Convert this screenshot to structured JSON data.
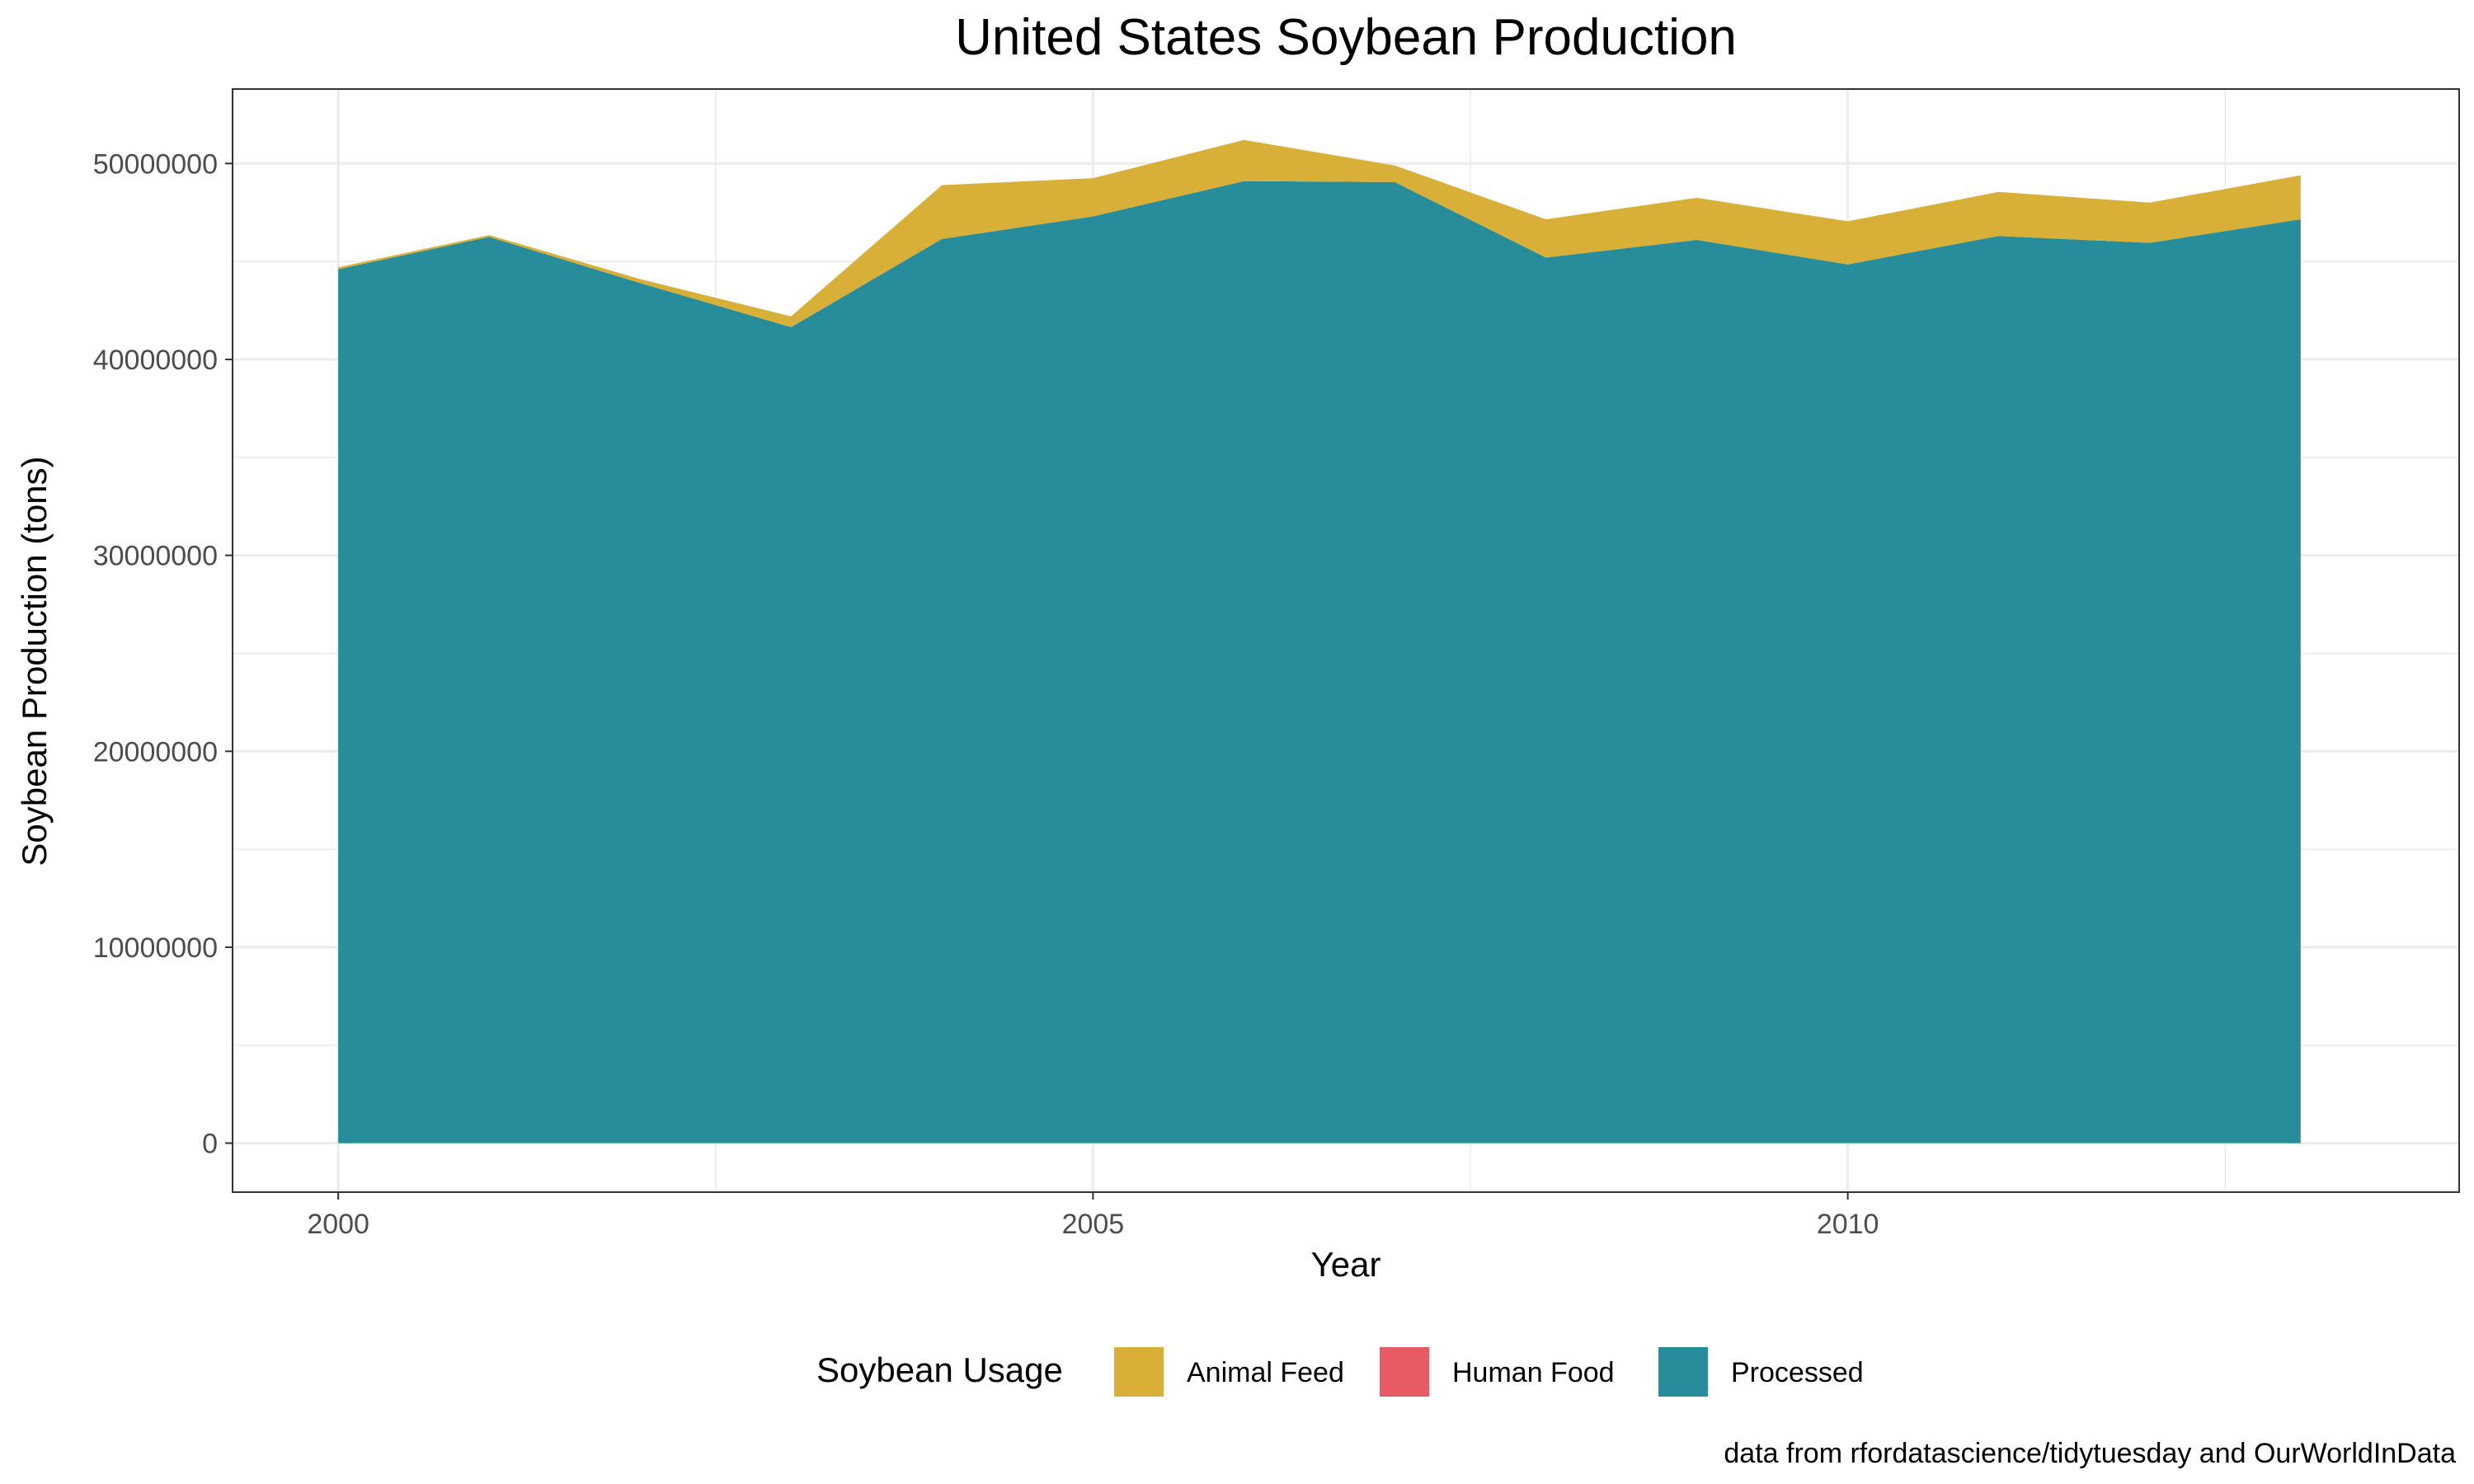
{
  "chart_data": {
    "type": "area",
    "stacked": true,
    "title": "United States Soybean Production",
    "xlabel": "Year",
    "ylabel": "Soybean Production (tons)",
    "caption": "data from rfordatascience/tidytuesday and OurWorldInData",
    "x": [
      2000,
      2001,
      2002,
      2003,
      2004,
      2005,
      2006,
      2007,
      2008,
      2009,
      2010,
      2011,
      2012,
      2013
    ],
    "xlim": [
      1999.3,
      2014.05
    ],
    "ylim": [
      -2500000,
      53800000
    ],
    "x_ticks": [
      2000,
      2005,
      2010
    ],
    "x_tick_labels": [
      "2000",
      "2005",
      "2010"
    ],
    "x_minor_ticks": [
      2002.5,
      2007.5,
      2012.5
    ],
    "y_ticks": [
      0,
      10000000,
      20000000,
      30000000,
      40000000,
      50000000
    ],
    "y_tick_labels": [
      "0",
      "10000000",
      "20000000",
      "30000000",
      "40000000",
      "50000000"
    ],
    "y_minor_ticks": [
      5000000,
      15000000,
      25000000,
      35000000,
      45000000
    ],
    "grid": true,
    "legend": {
      "title": "Soybean Usage",
      "position": "bottom"
    },
    "series": [
      {
        "name": "Processed",
        "color": "#278D9A",
        "values": [
          44600000,
          46250000,
          43900000,
          41650000,
          46150000,
          47300000,
          49100000,
          49050000,
          45200000,
          46100000,
          44850000,
          46300000,
          45950000,
          47150000
        ]
      },
      {
        "name": "Human Food",
        "color": "#E85B65",
        "values": [
          0,
          0,
          0,
          0,
          0,
          0,
          0,
          0,
          0,
          0,
          0,
          0,
          0,
          0
        ]
      },
      {
        "name": "Animal Feed",
        "color": "#D8B038",
        "values": [
          100000,
          100000,
          200000,
          550000,
          2750000,
          1950000,
          2100000,
          850000,
          1950000,
          2150000,
          2200000,
          2250000,
          2050000,
          2250000
        ]
      }
    ],
    "legend_order": [
      "Animal Feed",
      "Human Food",
      "Processed"
    ],
    "colors": {
      "panel_border": "#333333",
      "grid": "#ebebeb",
      "tick_text": "#4d4d4d"
    }
  }
}
